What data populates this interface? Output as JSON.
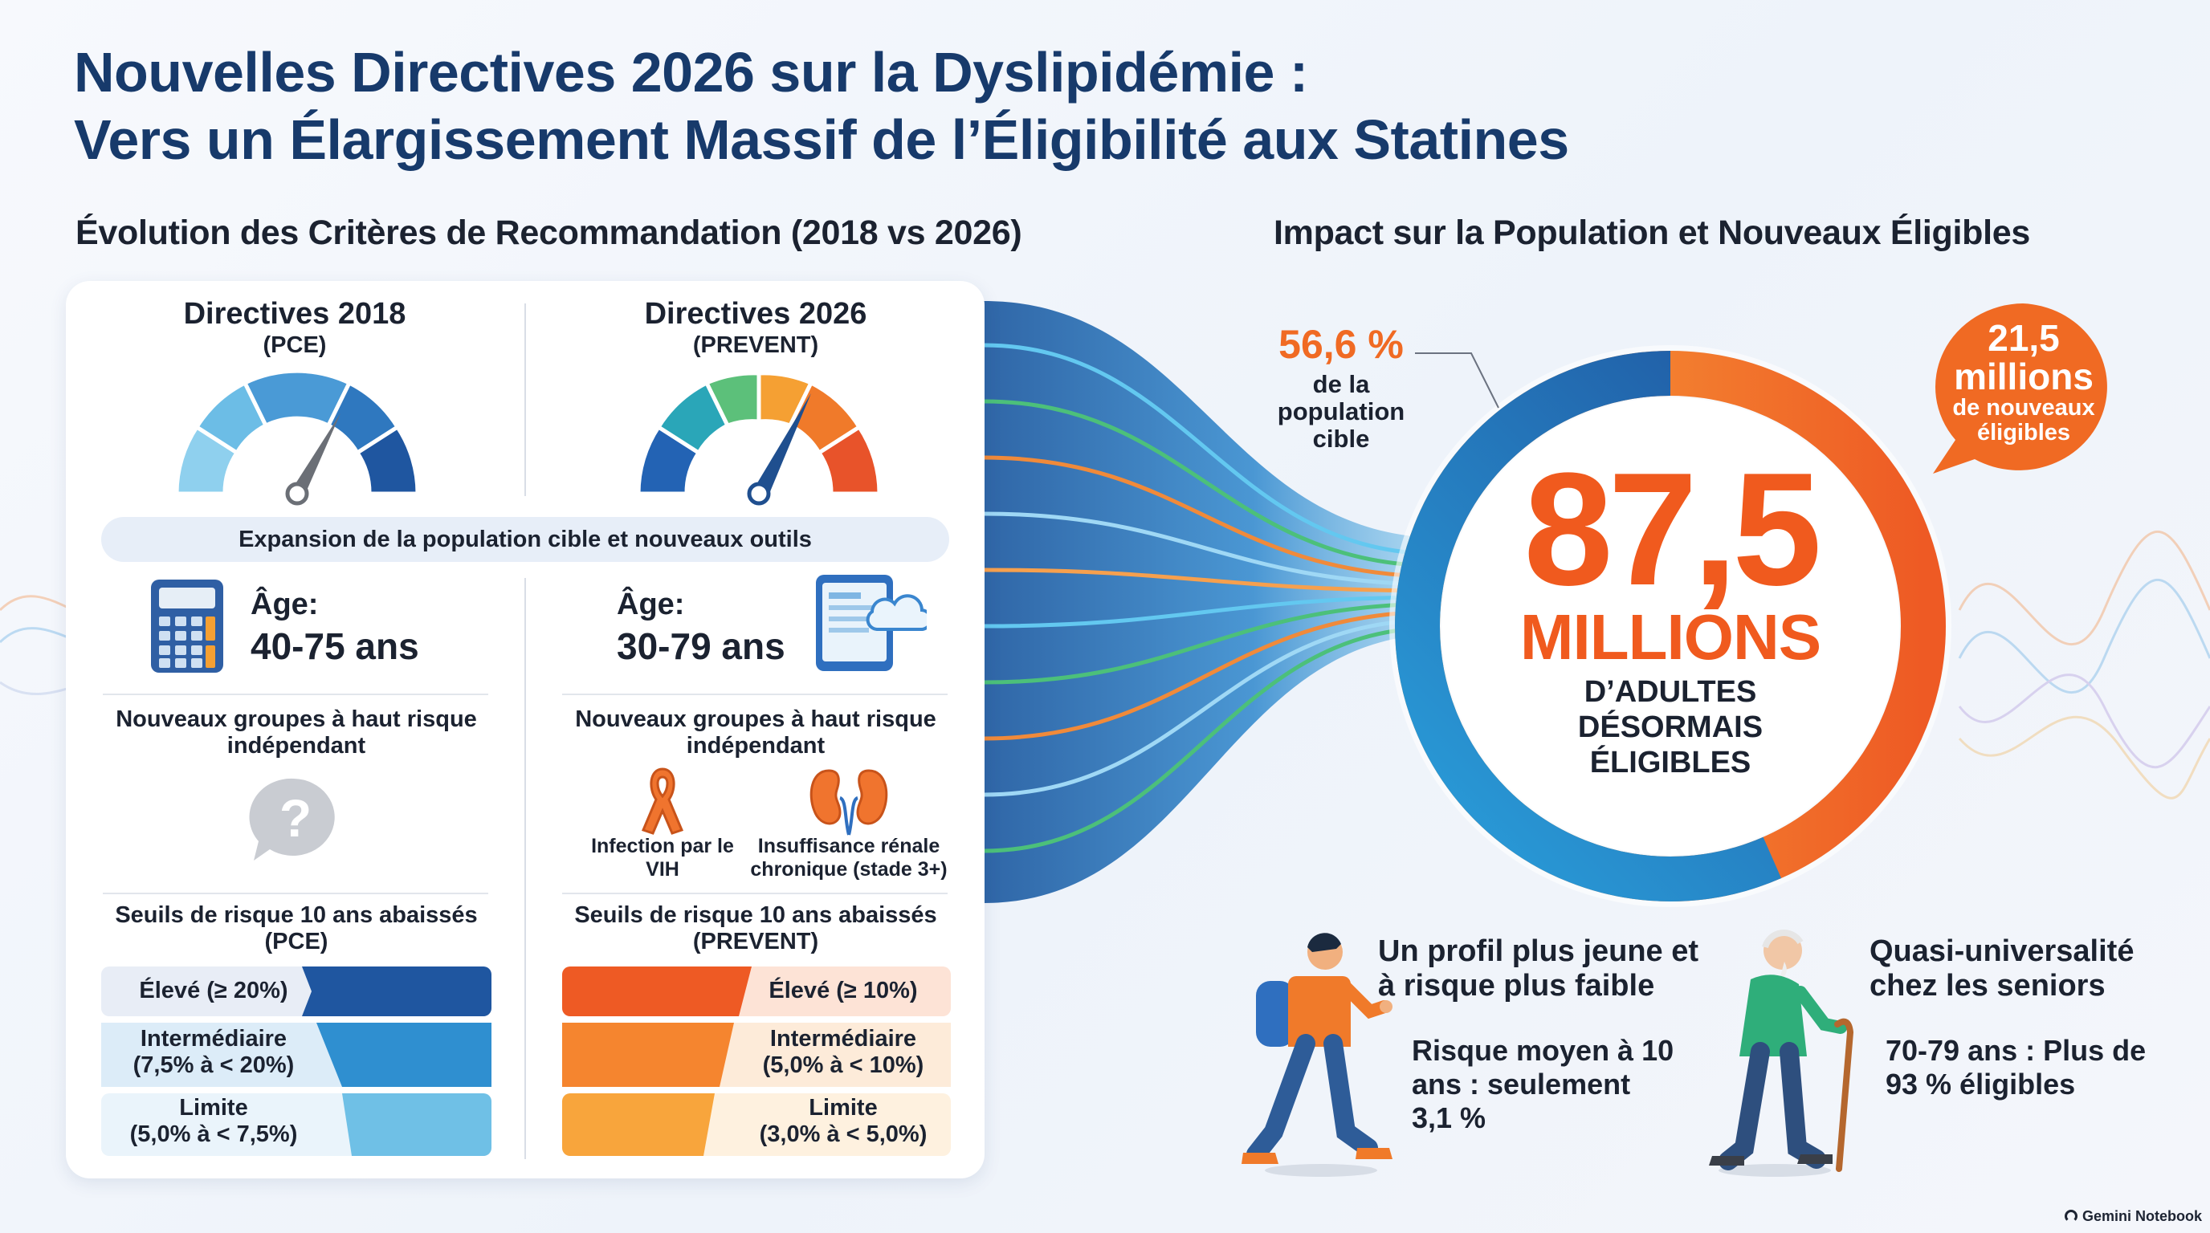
{
  "title": {
    "line1": "Nouvelles Directives 2026 sur la Dyslipidémie :",
    "line2": "Vers un Élargissement Massif de l’Éligibilité aux Statines"
  },
  "left_section": {
    "heading": "Évolution des Critères de Recommandation (2018 vs 2026)",
    "col2018": {
      "title": "Directives 2018",
      "subtitle": "(PCE)"
    },
    "col2026": {
      "title": "Directives 2026",
      "subtitle": "(PREVENT)"
    },
    "banner": "Expansion de la population cible et nouveaux outils",
    "age2018": {
      "label": "Âge:",
      "value": "40-75 ans"
    },
    "age2026": {
      "label": "Âge:",
      "value": "30-79 ans"
    },
    "groups_heading_2018": "Nouveaux groupes à haut risque indépendant",
    "groups_heading_2026": "Nouveaux groupes à haut risque indépendant",
    "group_hiv": "Infection par le VIH",
    "group_ckd": "Insuffisance rénale chronique (stade 3+)",
    "thresholds_2018": "Seuils de risque 10 ans abaissés (PCE)",
    "thresholds_2026": "Seuils de risque 10 ans abaissés (PREVENT)",
    "tiers2018": {
      "high": "Élevé (≥ 20%)",
      "mid_name": "Intermédiaire",
      "mid_range": "(7,5% à < 20%)",
      "low_name": "Limite",
      "low_range": "(5,0% à < 7,5%)"
    },
    "tiers2026": {
      "high": "Élevé (≥ 10%)",
      "mid_name": "Intermédiaire",
      "mid_range": "(5,0% à < 10%)",
      "low_name": "Limite",
      "low_range": "(3,0% à < 5,0%)"
    },
    "icons": [
      "calculator-icon",
      "tablet-cloud-icon",
      "question-bubble-icon",
      "ribbon-icon",
      "kidney-icon"
    ]
  },
  "right_section": {
    "heading": "Impact sur la Population et Nouveaux Éligibles",
    "total_number": "87,5",
    "total_unit": "MILLIONS",
    "total_desc": "D’ADULTES DÉSORMAIS ÉLIGIBLES",
    "pct_value": "56,6 %",
    "pct_desc_1": "de la",
    "pct_desc_2": "population",
    "pct_desc_3": "cible",
    "badge_number": "21,5",
    "badge_unit": "millions",
    "badge_desc_1": "de nouveaux",
    "badge_desc_2": "éligibles",
    "young_title": "Un profil plus jeune et à risque plus faible",
    "young_text": "Risque moyen à 10 ans : seulement 3,1 %",
    "senior_title": "Quasi-universalité chez les seniors",
    "senior_text": "70-79 ans : Plus de 93 % éligibles",
    "donut_share_pct": 56.6
  },
  "footer": {
    "brand": "Gemini Notebook"
  },
  "colors": {
    "title": "#173a6b",
    "accent_orange": "#f05a1e",
    "blue_dark": "#1f5aa0",
    "blue_light": "#6fc0e6"
  }
}
